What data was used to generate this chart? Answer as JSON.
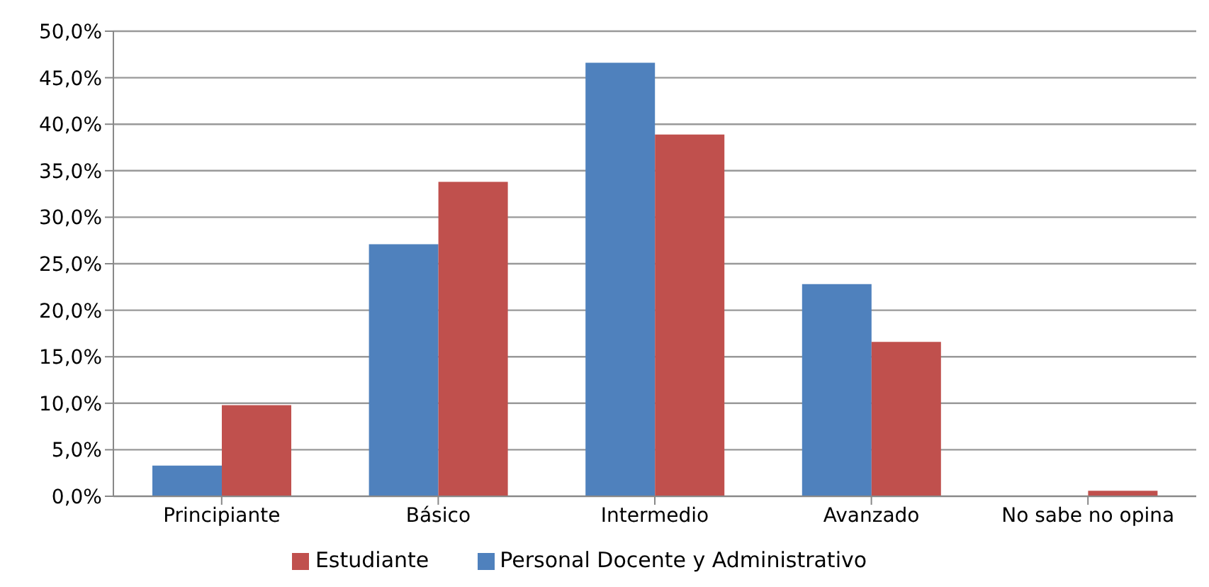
{
  "chart_data": {
    "type": "bar",
    "categories": [
      "Principiante",
      "Básico",
      "Intermedio",
      "Avanzado",
      "No sabe no opina"
    ],
    "series": [
      {
        "name": "Personal Docente y Administrativo",
        "color": "#4f81bd",
        "values": [
          3.3,
          27.1,
          46.6,
          22.8,
          0
        ]
      },
      {
        "name": "Estudiante",
        "color": "#c0504d",
        "values": [
          9.8,
          33.8,
          38.9,
          16.6,
          0.6
        ]
      }
    ],
    "ylim": [
      0,
      50
    ],
    "yticks": [
      {
        "value": 0,
        "label": "0,0%"
      },
      {
        "value": 5,
        "label": "5,0%"
      },
      {
        "value": 10,
        "label": "10,0%"
      },
      {
        "value": 15,
        "label": "15,0%"
      },
      {
        "value": 20,
        "label": "20,0%"
      },
      {
        "value": 25,
        "label": "25,0%"
      },
      {
        "value": 30,
        "label": "30,0%"
      },
      {
        "value": 35,
        "label": "35,0%"
      },
      {
        "value": 40,
        "label": "40,0%"
      },
      {
        "value": 45,
        "label": "45,0%"
      },
      {
        "value": 50,
        "label": "50,0%"
      }
    ],
    "grid": "y",
    "legend": "bottom"
  }
}
